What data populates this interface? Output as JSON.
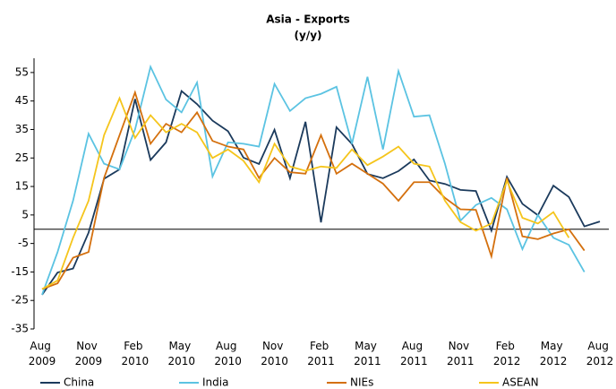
{
  "chart_data": {
    "type": "line",
    "title": "Asia - Exports",
    "subtitle": "(y/y)",
    "categories": [
      "Aug 2009",
      null,
      null,
      "Nov 2009",
      null,
      null,
      "Feb 2010",
      null,
      null,
      "May 2010",
      null,
      null,
      "Aug 2010",
      null,
      null,
      "Nov 2010",
      null,
      null,
      "Feb 2011",
      null,
      null,
      "May 2011",
      null,
      null,
      "Aug 2011",
      null,
      null,
      "Nov 2011",
      null,
      null,
      "Feb 2012",
      null,
      null,
      "May 2012",
      null,
      null,
      "Aug 2012"
    ],
    "series": [
      {
        "name": "China",
        "color": "#1b3a5c",
        "values": [
          -23,
          -15.2,
          -13.8,
          -1.2,
          17.7,
          21,
          45.7,
          24.3,
          30.5,
          48.5,
          43.9,
          38.1,
          34.4,
          25.1,
          22.9,
          34.9,
          17.9,
          37.7,
          2.4,
          35.8,
          29.9,
          19.4,
          17.9,
          20.4,
          24.5,
          17.1,
          15.9,
          13.8,
          13.4,
          -0.5,
          18.4,
          8.9,
          4.9,
          15.3,
          11.3,
          1,
          2.7
        ]
      },
      {
        "name": "India",
        "color": "#5bc3e2",
        "values": [
          -23,
          -8,
          10,
          33.5,
          23,
          21,
          35,
          57,
          45.5,
          41,
          51.5,
          18.5,
          30.5,
          30,
          29,
          51,
          41.5,
          46,
          47.5,
          50,
          30,
          53.5,
          28,
          55.5,
          39.5,
          40,
          23,
          3,
          8.5,
          11,
          7,
          -7,
          5,
          -3,
          -5.5,
          -15,
          null
        ]
      },
      {
        "name": "NIEs",
        "color": "#d4700e",
        "values": [
          -21,
          -19,
          -10,
          -8,
          18,
          33,
          48,
          30,
          37,
          34,
          41,
          31,
          29,
          28,
          18,
          25,
          20,
          19.5,
          33,
          19.5,
          23,
          19.5,
          16,
          10,
          16.5,
          16.5,
          11,
          7,
          6.8,
          -9.5,
          18,
          -2.5,
          -3.5,
          -1.5,
          0,
          -7.5,
          null
        ]
      },
      {
        "name": "ASEAN",
        "color": "#f5c51c",
        "values": [
          -21,
          -18,
          -3,
          10,
          33,
          46,
          32,
          40,
          34,
          37,
          34,
          25,
          28,
          24,
          16.5,
          30,
          22,
          20.5,
          22,
          21.5,
          28,
          22.5,
          25.5,
          29,
          23,
          22,
          10,
          2.5,
          -0.5,
          2,
          17,
          4,
          2,
          6,
          -3,
          null,
          null
        ]
      }
    ],
    "ylim": [
      -35,
      60
    ],
    "yticks": [
      -35,
      -25,
      -15,
      -5,
      5,
      15,
      25,
      35,
      45,
      55
    ],
    "grid": false,
    "legend": "bottom"
  }
}
